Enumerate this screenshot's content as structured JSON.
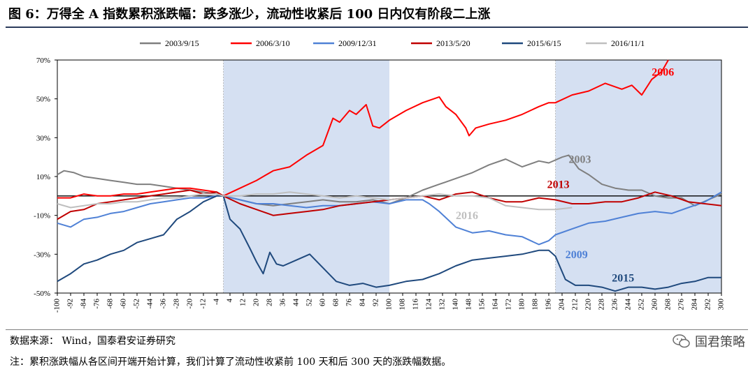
{
  "title": "图 6：万得全 A 指数累积涨跌幅：跌多涨少，流动性收紧后 100 日内仅有阶段二上涨",
  "source": "数据来源：  Wind，国泰君安证券研究",
  "note": "注：累积涨跌幅从各区间开端开始计算，我们计算了流动性收紧前 100 天和后 300 天的涨跌幅数据。",
  "logo_text": "国君策略",
  "chart_data": {
    "type": "line",
    "title": "",
    "xlabel": "",
    "ylabel": "",
    "xlim": [
      -100,
      300
    ],
    "ylim": [
      -50,
      70
    ],
    "y_unit": "%",
    "y_ticks": [
      70,
      50,
      30,
      10,
      -10,
      -30,
      -50
    ],
    "x_ticks": [
      -100,
      -92,
      -84,
      -76,
      -68,
      -60,
      -52,
      -44,
      -36,
      -28,
      -20,
      -12,
      -4,
      4,
      12,
      20,
      28,
      36,
      44,
      52,
      60,
      68,
      76,
      84,
      92,
      100,
      108,
      116,
      124,
      132,
      140,
      148,
      156,
      164,
      172,
      180,
      188,
      196,
      204,
      212,
      220,
      228,
      236,
      244,
      252,
      260,
      268,
      276,
      284,
      292,
      300
    ],
    "grid": false,
    "legend_position": "top",
    "shaded_regions": [
      [
        0,
        100
      ],
      [
        200,
        300
      ]
    ],
    "shade_color": "#d5e0f2",
    "zero_line": true,
    "series": [
      {
        "name": "2003/9/15",
        "color": "#7f7f7f",
        "label": "2003",
        "label_at": [
          208,
          17
        ],
        "points": [
          [
            -100,
            11
          ],
          [
            -96,
            13
          ],
          [
            -90,
            12
          ],
          [
            -84,
            10
          ],
          [
            -76,
            9
          ],
          [
            -68,
            8
          ],
          [
            -60,
            7
          ],
          [
            -52,
            6
          ],
          [
            -44,
            6
          ],
          [
            -36,
            5
          ],
          [
            -28,
            4
          ],
          [
            -20,
            3
          ],
          [
            -12,
            2
          ],
          [
            -4,
            1
          ],
          [
            0,
            0
          ],
          [
            10,
            -2
          ],
          [
            20,
            -4
          ],
          [
            30,
            -5
          ],
          [
            40,
            -4
          ],
          [
            50,
            -3
          ],
          [
            60,
            -2
          ],
          [
            70,
            -3
          ],
          [
            80,
            -3
          ],
          [
            90,
            -2
          ],
          [
            100,
            -4
          ],
          [
            110,
            -1
          ],
          [
            120,
            3
          ],
          [
            130,
            6
          ],
          [
            140,
            9
          ],
          [
            150,
            12
          ],
          [
            160,
            16
          ],
          [
            170,
            19
          ],
          [
            180,
            15
          ],
          [
            190,
            18
          ],
          [
            196,
            17
          ],
          [
            204,
            20
          ],
          [
            208,
            21
          ],
          [
            214,
            14
          ],
          [
            220,
            11
          ],
          [
            228,
            6
          ],
          [
            236,
            4
          ],
          [
            244,
            3
          ],
          [
            252,
            3
          ],
          [
            260,
            0
          ],
          [
            268,
            -1
          ],
          [
            276,
            -1
          ],
          [
            284,
            -5
          ],
          [
            292,
            -2
          ],
          [
            300,
            1
          ]
        ]
      },
      {
        "name": "2006/3/10",
        "color": "#ff0000",
        "label": "2006",
        "label_at": [
          258,
          62
        ],
        "points": [
          [
            -100,
            -1
          ],
          [
            -92,
            -1
          ],
          [
            -84,
            1
          ],
          [
            -76,
            0
          ],
          [
            -68,
            0
          ],
          [
            -60,
            1
          ],
          [
            -52,
            1
          ],
          [
            -44,
            2
          ],
          [
            -36,
            3
          ],
          [
            -28,
            4
          ],
          [
            -20,
            4
          ],
          [
            -12,
            3
          ],
          [
            -4,
            2
          ],
          [
            0,
            0
          ],
          [
            10,
            4
          ],
          [
            20,
            8
          ],
          [
            30,
            13
          ],
          [
            40,
            15
          ],
          [
            50,
            21
          ],
          [
            60,
            26
          ],
          [
            66,
            40
          ],
          [
            70,
            38
          ],
          [
            76,
            44
          ],
          [
            80,
            42
          ],
          [
            86,
            47
          ],
          [
            90,
            36
          ],
          [
            94,
            35
          ],
          [
            100,
            39
          ],
          [
            110,
            44
          ],
          [
            120,
            48
          ],
          [
            130,
            51
          ],
          [
            134,
            46
          ],
          [
            140,
            42
          ],
          [
            146,
            35
          ],
          [
            148,
            31
          ],
          [
            152,
            35
          ],
          [
            160,
            37
          ],
          [
            170,
            39
          ],
          [
            180,
            42
          ],
          [
            190,
            46
          ],
          [
            196,
            48
          ],
          [
            200,
            48
          ],
          [
            210,
            52
          ],
          [
            220,
            54
          ],
          [
            230,
            58
          ],
          [
            240,
            55
          ],
          [
            246,
            57
          ],
          [
            252,
            52
          ],
          [
            258,
            60
          ],
          [
            264,
            64
          ],
          [
            268,
            70
          ]
        ]
      },
      {
        "name": "2009/12/31",
        "color": "#4f81d6",
        "label": "2009",
        "label_at": [
          206,
          -32
        ],
        "points": [
          [
            -100,
            -14
          ],
          [
            -92,
            -16
          ],
          [
            -84,
            -12
          ],
          [
            -76,
            -11
          ],
          [
            -68,
            -9
          ],
          [
            -60,
            -8
          ],
          [
            -52,
            -6
          ],
          [
            -44,
            -4
          ],
          [
            -36,
            -3
          ],
          [
            -28,
            -2
          ],
          [
            -20,
            -1
          ],
          [
            -12,
            -1
          ],
          [
            -4,
            0
          ],
          [
            0,
            0
          ],
          [
            10,
            -2
          ],
          [
            20,
            -4
          ],
          [
            30,
            -4
          ],
          [
            40,
            -5
          ],
          [
            50,
            -6
          ],
          [
            60,
            -5
          ],
          [
            70,
            -5
          ],
          [
            80,
            -4
          ],
          [
            90,
            -3
          ],
          [
            100,
            -4
          ],
          [
            110,
            -2
          ],
          [
            120,
            -2
          ],
          [
            124,
            -4
          ],
          [
            130,
            -8
          ],
          [
            140,
            -16
          ],
          [
            150,
            -19
          ],
          [
            160,
            -18
          ],
          [
            170,
            -20
          ],
          [
            180,
            -21
          ],
          [
            190,
            -25
          ],
          [
            196,
            -23
          ],
          [
            200,
            -20
          ],
          [
            210,
            -17
          ],
          [
            220,
            -14
          ],
          [
            230,
            -13
          ],
          [
            240,
            -11
          ],
          [
            250,
            -9
          ],
          [
            260,
            -8
          ],
          [
            270,
            -9
          ],
          [
            280,
            -6
          ],
          [
            290,
            -3
          ],
          [
            300,
            2
          ]
        ]
      },
      {
        "name": "2013/5/20",
        "color": "#c00000",
        "label": "2013",
        "label_at": [
          195,
          4
        ],
        "points": [
          [
            -100,
            -12
          ],
          [
            -92,
            -8
          ],
          [
            -84,
            -7
          ],
          [
            -76,
            -4
          ],
          [
            -68,
            -3
          ],
          [
            -60,
            -2
          ],
          [
            -52,
            -1
          ],
          [
            -44,
            0
          ],
          [
            -36,
            1
          ],
          [
            -28,
            2
          ],
          [
            -20,
            3
          ],
          [
            -12,
            1
          ],
          [
            -4,
            2
          ],
          [
            0,
            0
          ],
          [
            10,
            -4
          ],
          [
            20,
            -7
          ],
          [
            30,
            -10
          ],
          [
            40,
            -9
          ],
          [
            50,
            -8
          ],
          [
            60,
            -7
          ],
          [
            70,
            -5
          ],
          [
            80,
            -4
          ],
          [
            90,
            -3
          ],
          [
            100,
            -2
          ],
          [
            110,
            -1
          ],
          [
            120,
            0
          ],
          [
            130,
            -2
          ],
          [
            140,
            1
          ],
          [
            150,
            2
          ],
          [
            160,
            -1
          ],
          [
            170,
            -3
          ],
          [
            180,
            -3
          ],
          [
            190,
            -1
          ],
          [
            200,
            -2
          ],
          [
            210,
            -4
          ],
          [
            220,
            -4
          ],
          [
            230,
            -3
          ],
          [
            240,
            -3
          ],
          [
            250,
            -1
          ],
          [
            260,
            2
          ],
          [
            270,
            0
          ],
          [
            280,
            -3
          ],
          [
            290,
            -4
          ],
          [
            300,
            -5
          ]
        ]
      },
      {
        "name": "2015/6/15",
        "color": "#1f497d",
        "label": "2015",
        "label_at": [
          234,
          -44
        ],
        "points": [
          [
            -100,
            -44
          ],
          [
            -92,
            -40
          ],
          [
            -84,
            -35
          ],
          [
            -76,
            -33
          ],
          [
            -68,
            -30
          ],
          [
            -60,
            -28
          ],
          [
            -52,
            -24
          ],
          [
            -44,
            -22
          ],
          [
            -36,
            -20
          ],
          [
            -28,
            -12
          ],
          [
            -20,
            -8
          ],
          [
            -12,
            -3
          ],
          [
            -4,
            0
          ],
          [
            0,
            0
          ],
          [
            4,
            -12
          ],
          [
            10,
            -17
          ],
          [
            16,
            -27
          ],
          [
            20,
            -34
          ],
          [
            24,
            -40
          ],
          [
            28,
            -29
          ],
          [
            32,
            -35
          ],
          [
            36,
            -36
          ],
          [
            44,
            -33
          ],
          [
            52,
            -30
          ],
          [
            60,
            -37
          ],
          [
            68,
            -44
          ],
          [
            76,
            -46
          ],
          [
            84,
            -45
          ],
          [
            92,
            -47
          ],
          [
            100,
            -46
          ],
          [
            110,
            -44
          ],
          [
            120,
            -43
          ],
          [
            130,
            -40
          ],
          [
            140,
            -36
          ],
          [
            150,
            -33
          ],
          [
            160,
            -32
          ],
          [
            170,
            -31
          ],
          [
            180,
            -30
          ],
          [
            190,
            -28
          ],
          [
            196,
            -28
          ],
          [
            200,
            -31
          ],
          [
            206,
            -43
          ],
          [
            212,
            -46
          ],
          [
            220,
            -46
          ],
          [
            228,
            -47
          ],
          [
            236,
            -49
          ],
          [
            244,
            -47
          ],
          [
            252,
            -47
          ],
          [
            260,
            -48
          ],
          [
            268,
            -47
          ],
          [
            276,
            -45
          ],
          [
            284,
            -44
          ],
          [
            292,
            -42
          ],
          [
            300,
            -42
          ]
        ]
      },
      {
        "name": "2016/11/1",
        "color": "#bfbfbf",
        "label": "2016",
        "label_at": [
          140,
          -12
        ],
        "points": [
          [
            -100,
            -4
          ],
          [
            -92,
            -6
          ],
          [
            -84,
            -5
          ],
          [
            -76,
            -4
          ],
          [
            -68,
            -4
          ],
          [
            -60,
            -3
          ],
          [
            -52,
            -3
          ],
          [
            -44,
            -2
          ],
          [
            -36,
            -1
          ],
          [
            -28,
            -1
          ],
          [
            -20,
            0
          ],
          [
            -12,
            1
          ],
          [
            -4,
            1
          ],
          [
            0,
            0
          ],
          [
            10,
            0
          ],
          [
            20,
            1
          ],
          [
            30,
            1
          ],
          [
            40,
            2
          ],
          [
            50,
            1
          ],
          [
            60,
            0
          ],
          [
            70,
            -1
          ],
          [
            80,
            0
          ],
          [
            90,
            -1
          ],
          [
            100,
            -2
          ],
          [
            110,
            -1
          ],
          [
            120,
            0
          ],
          [
            130,
            1
          ],
          [
            140,
            0
          ],
          [
            150,
            0
          ],
          [
            160,
            -1
          ],
          [
            170,
            -5
          ],
          [
            180,
            -6
          ],
          [
            190,
            -7
          ],
          [
            200,
            -7
          ],
          [
            210,
            -6
          ]
        ]
      }
    ]
  }
}
